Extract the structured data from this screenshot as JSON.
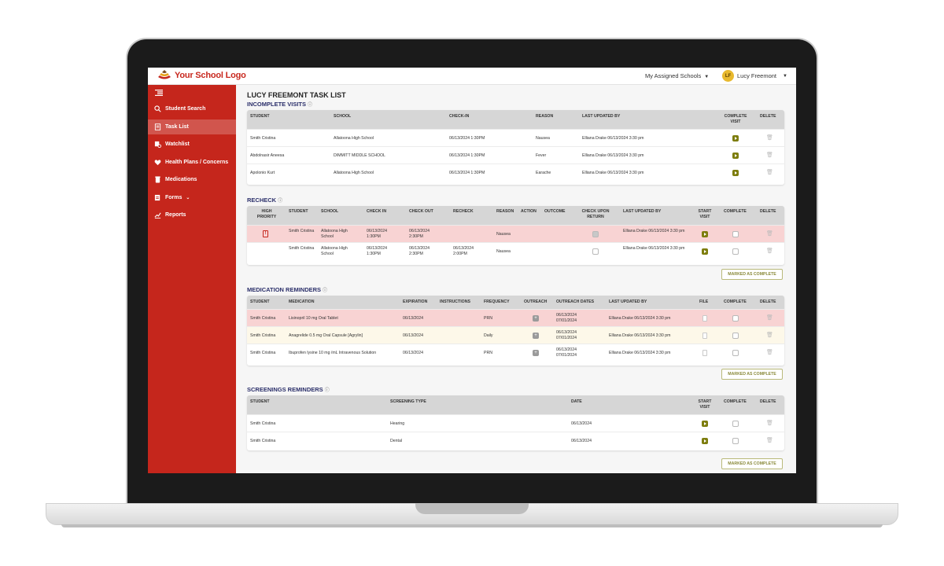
{
  "app": {
    "logo_text": "Your School Logo",
    "schools_label": "My Assigned Schools",
    "user_initials": "LF",
    "user_name": "Lucy Freemont",
    "brand_color": "#c5261c",
    "accent_color": "#7d7d0e"
  },
  "sidebar": {
    "items": [
      {
        "label": "Student Search",
        "icon": "search-icon"
      },
      {
        "label": "Task List",
        "icon": "task-list-icon"
      },
      {
        "label": "Watchlist",
        "icon": "watchlist-icon"
      },
      {
        "label": "Health Plans / Concerns",
        "icon": "health-plans-icon"
      },
      {
        "label": "Medications",
        "icon": "medications-icon"
      },
      {
        "label": "Forms",
        "icon": "forms-icon"
      },
      {
        "label": "Reports",
        "icon": "reports-icon"
      }
    ]
  },
  "page": {
    "title": "LUCY FREEMONT TASK LIST"
  },
  "incomplete": {
    "title": "INCOMPLETE VISITS",
    "headers": [
      "STUDENT",
      "SCHOOL",
      "CHECK-IN",
      "REASON",
      "LAST UPDATED BY",
      "COMPLETE VISIT",
      "DELETE"
    ],
    "rows": [
      {
        "student": "Smith Cristina",
        "school": "Allatoona High School",
        "checkin": "06/13/2024 1:30PM",
        "reason": "Nausea",
        "updated": "Elliana Drake 06/13/2024 3:30 pm"
      },
      {
        "student": "Abdolnasir Aneesa",
        "school": "DIMMITT MIDDLE SCHOOL",
        "checkin": "06/13/2024 1:30PM",
        "reason": "Fever",
        "updated": "Elliana Drake 06/13/2024 3:30 pm"
      },
      {
        "student": "Apolonio Kurt",
        "school": "Allatoona High School",
        "checkin": "06/13/2024 1:30PM",
        "reason": "Earache",
        "updated": "Elliana Drake 06/13/2024 3:30 pm"
      }
    ]
  },
  "recheck": {
    "title": "RECHECK",
    "headers": [
      "HIGH PRIORITY",
      "STUDENT",
      "SCHOOL",
      "CHECK IN",
      "CHECK OUT",
      "RECHECK",
      "REASON",
      "ACTION",
      "OUTCOME",
      "CHECK UPON RETURN",
      "LAST UPDATED BY",
      "START VISIT",
      "COMPLETE",
      "DELETE"
    ],
    "rows": [
      {
        "priority": true,
        "student": "Smith Cristina",
        "school": "Allatoona High School",
        "checkin": "06/13/2024 1:30PM",
        "checkout": "06/13/2024 2:30PM",
        "recheck": "",
        "reason": "Nausea",
        "check_return": true,
        "updated": "Elliana Drake 06/13/2024 3:30 pm"
      },
      {
        "priority": false,
        "student": "Smith Cristina",
        "school": "Allatoona High School",
        "checkin": "06/13/2024 1:30PM",
        "checkout": "06/13/2024 2:30PM",
        "recheck": "06/13/2024 2:00PM",
        "reason": "Nausea",
        "check_return": false,
        "updated": "Elliana Drake 06/13/2024 3:30 pm"
      }
    ],
    "mark_label": "MARKED AS COMPLETE"
  },
  "medication": {
    "title": "MEDICATION REMINDERS",
    "headers": [
      "STUDENT",
      "MEDICATION",
      "EXPIRATION",
      "INSTRUCTIONS",
      "FREQUENCY",
      "OUTREACH",
      "OUTREACH DATES",
      "LAST UPDATED BY",
      "FILE",
      "COMPLETE",
      "DELETE"
    ],
    "rows": [
      {
        "student": "Smith Cristina",
        "medication": "Lisinopril 10 mg Oral Tablet",
        "expiration": "06/13/2024",
        "frequency": "PRN",
        "dates": "06/13/2024 07/01/2024",
        "updated": "Elliana Drake 06/13/2024 3:30 pm"
      },
      {
        "student": "Smith Cristina",
        "medication": "Anagrelide 0.5 mg Oral Capsule [Agrylin]",
        "expiration": "06/13/2024",
        "frequency": "Daily",
        "dates": "06/13/2024 07/01/2024",
        "updated": "Elliana Drake 06/13/2024 3:30 pm"
      },
      {
        "student": "Smith Cristina",
        "medication": "Ibuprofen lysine 10 mg /mL Intravenous Solution",
        "expiration": "06/13/2024",
        "frequency": "PRN",
        "dates": "06/13/2024 07/01/2024",
        "updated": "Elliana Drake 06/13/2024 3:30 pm"
      }
    ],
    "mark_label": "MARKED AS COMPLETE"
  },
  "screenings": {
    "title": "SCREENINGS REMINDERS",
    "headers": [
      "STUDENT",
      "SCREENING TYPE",
      "DATE",
      "START VISIT",
      "COMPLETE",
      "DELETE"
    ],
    "rows": [
      {
        "student": "Smith Cristina",
        "type": "Hearing",
        "date": "06/13/2024"
      },
      {
        "student": "Smith Cristina",
        "type": "Dental",
        "date": "06/13/2024"
      }
    ],
    "mark_label": "MARKED AS COMPLETE"
  }
}
